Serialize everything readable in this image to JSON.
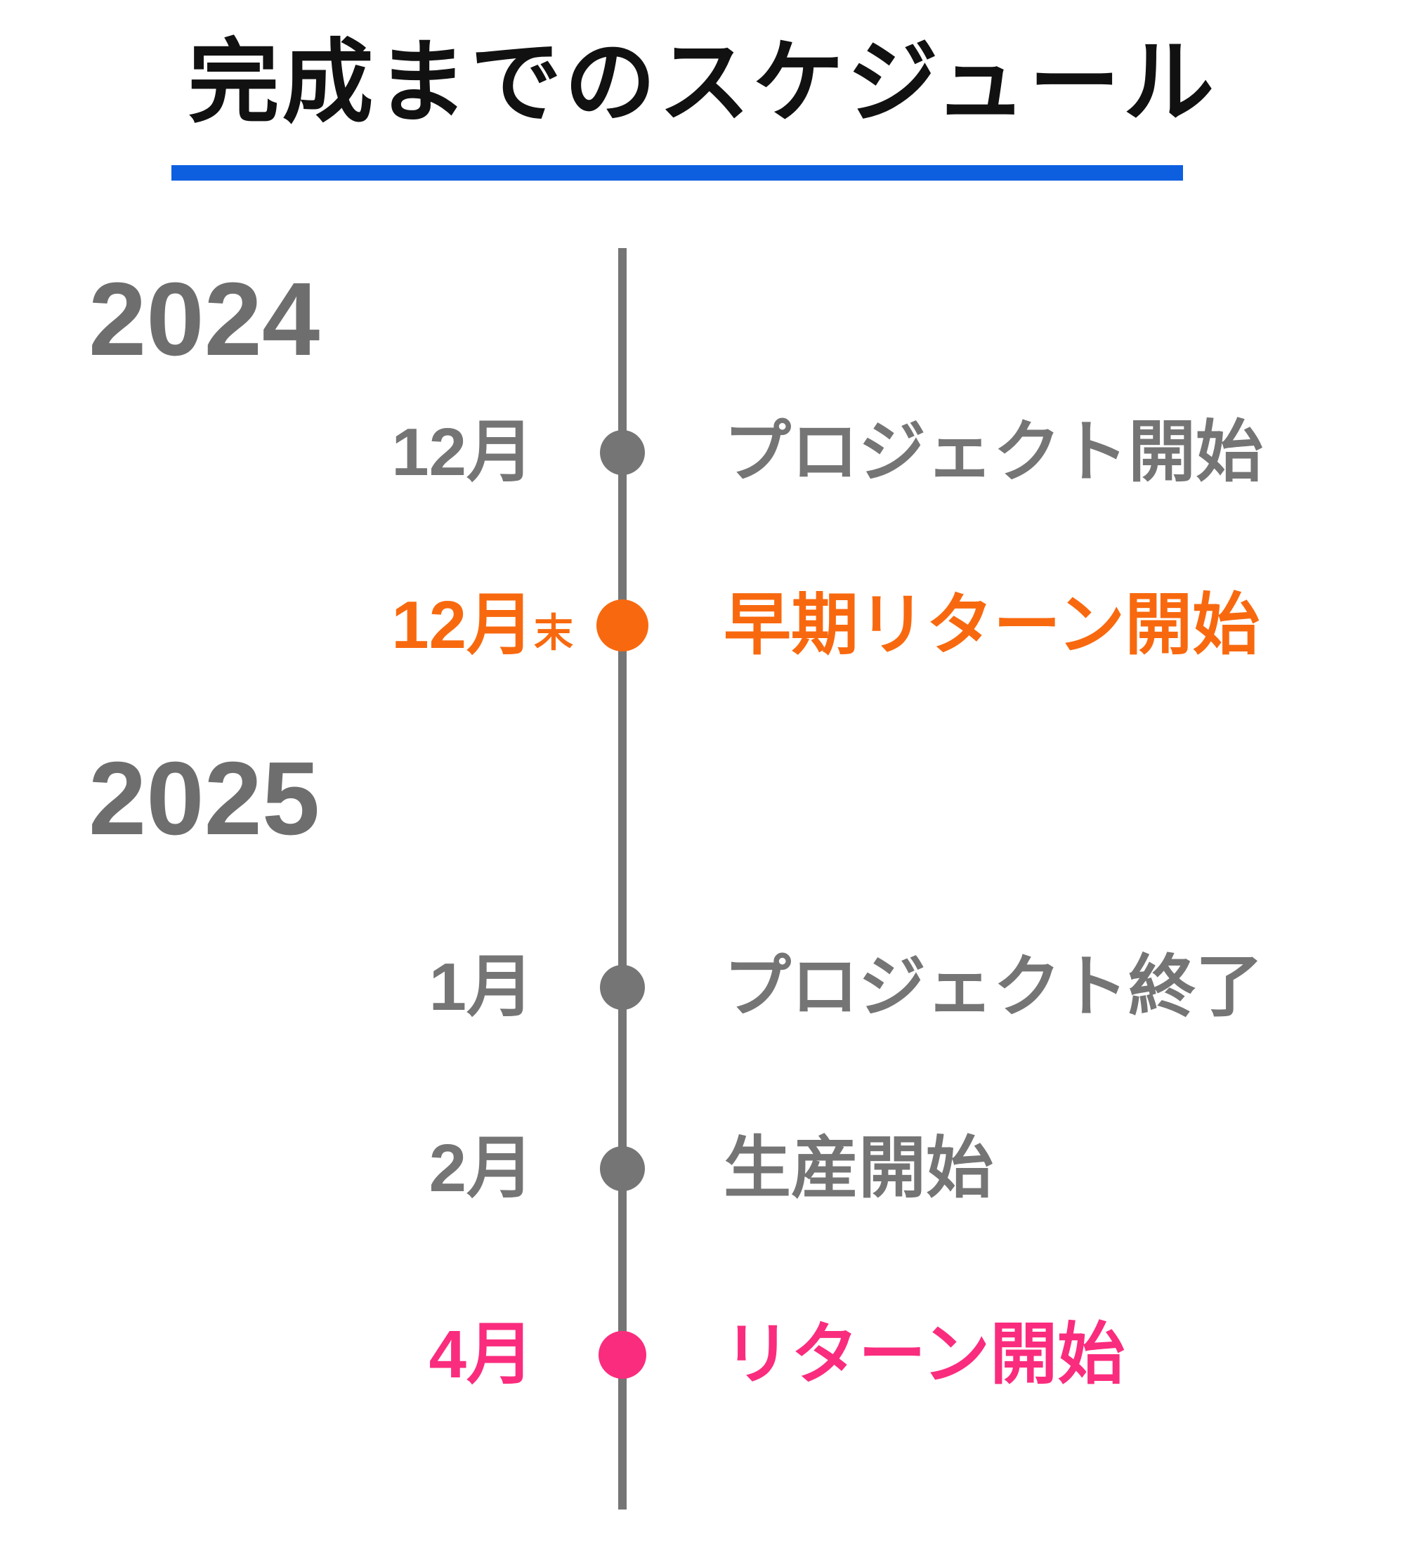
{
  "title": "完成までのスケジュール",
  "colors": {
    "title-black": "#111111",
    "underline-blue": "#0D5FE0",
    "gray": "#757575",
    "year-gray": "#6E6E6E",
    "orange": "#F8690F",
    "pink": "#FA2C7D"
  },
  "timeline": {
    "years": [
      {
        "label": "2024"
      },
      {
        "label": "2025"
      }
    ],
    "milestones": [
      {
        "month": "12月",
        "suffix": "",
        "label": "プロジェクト開始",
        "color": "gray"
      },
      {
        "month": "12月",
        "suffix": "末",
        "label": "早期リターン開始",
        "color": "orange"
      },
      {
        "month": "1月",
        "suffix": "",
        "label": "プロジェクト終了",
        "color": "gray"
      },
      {
        "month": "2月",
        "suffix": "",
        "label": "生産開始",
        "color": "gray"
      },
      {
        "month": "4月",
        "suffix": "",
        "label": "リターン開始",
        "color": "pink"
      }
    ]
  }
}
